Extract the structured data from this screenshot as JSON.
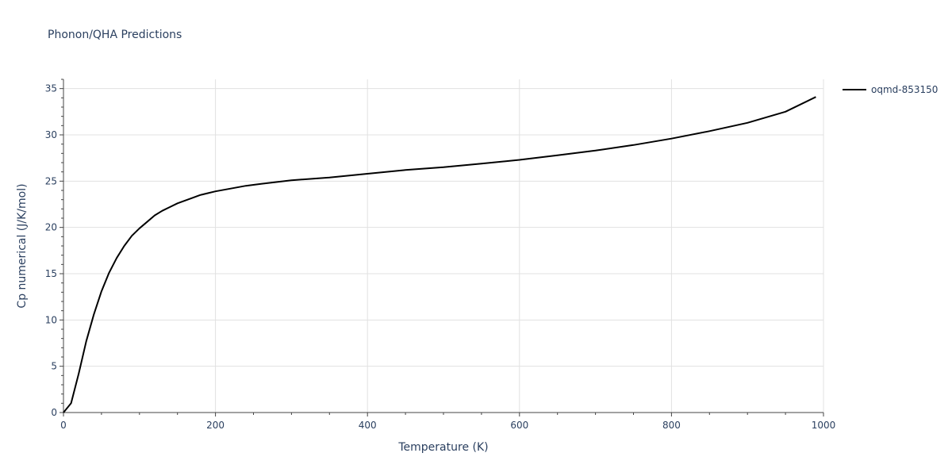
{
  "chart_data": {
    "type": "line",
    "title": "Phonon/QHA Predictions",
    "xlabel": "Temperature (K)",
    "ylabel": "Cp numerical (J/K/mol)",
    "xlim": [
      0,
      1000
    ],
    "ylim": [
      0,
      36
    ],
    "xticks": [
      0,
      200,
      400,
      600,
      800,
      1000
    ],
    "yticks": [
      0,
      5,
      10,
      15,
      20,
      25,
      30,
      35
    ],
    "grid": true,
    "legend_position": "top-right",
    "series": [
      {
        "name": "oqmd-853150",
        "color": "#000000",
        "x": [
          0,
          10,
          20,
          30,
          40,
          50,
          60,
          70,
          80,
          90,
          100,
          110,
          120,
          130,
          140,
          150,
          160,
          170,
          180,
          190,
          200,
          220,
          240,
          260,
          280,
          300,
          350,
          400,
          450,
          500,
          550,
          600,
          650,
          700,
          750,
          800,
          850,
          900,
          950,
          990
        ],
        "y": [
          0,
          1.0,
          4.2,
          7.7,
          10.6,
          13.1,
          15.1,
          16.7,
          18.0,
          19.1,
          19.9,
          20.6,
          21.3,
          21.8,
          22.2,
          22.6,
          22.9,
          23.2,
          23.5,
          23.7,
          23.9,
          24.2,
          24.5,
          24.7,
          24.9,
          25.1,
          25.4,
          25.8,
          26.2,
          26.5,
          26.9,
          27.3,
          27.8,
          28.3,
          28.9,
          29.6,
          30.4,
          31.3,
          32.5,
          34.1
        ]
      }
    ]
  }
}
